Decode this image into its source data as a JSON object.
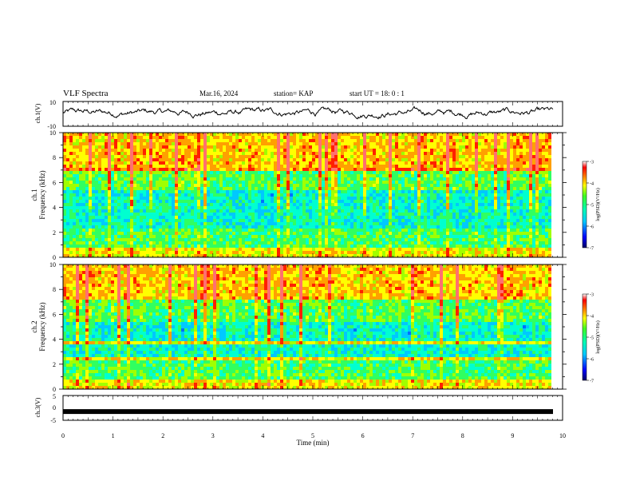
{
  "header": {
    "title": "VLF Spectra",
    "date": "Mar.16, 2024",
    "station": "station= KAP",
    "start": "start UT =  18: 0  : 1"
  },
  "colors": {
    "spectrum": [
      "#000066",
      "#0000ff",
      "#0070ff",
      "#00c8ff",
      "#00ffd0",
      "#30ff60",
      "#a0ff00",
      "#ffff00",
      "#ffa000",
      "#ff2000",
      "#ff7070",
      "#ffffff"
    ]
  },
  "chart_data": [
    {
      "type": "line",
      "panel": "ch1-waveform",
      "ylabel": "ch.1(V)",
      "ylim": [
        -10,
        10
      ],
      "ytick_labels": [
        "10",
        "-10"
      ],
      "x_range": [
        0,
        9.83
      ],
      "approx_level": 1,
      "amplitude": 4
    },
    {
      "type": "heatmap",
      "panel": "ch1-spectrogram",
      "ylabel_line1": "ch.1",
      "ylabel_line2": "Frequency (kHz)",
      "ylim": [
        0,
        10
      ],
      "ytick_labels": [
        "0",
        "2",
        "4",
        "6",
        "8",
        "10"
      ],
      "colorbar": {
        "label": "log(PSD)(V²/Hz)",
        "range": [
          -7,
          -3
        ],
        "tick_labels": [
          "-3",
          "-4",
          "-5",
          "-6",
          "-7"
        ]
      }
    },
    {
      "type": "heatmap",
      "panel": "ch2-spectrogram",
      "ylabel_line1": "ch.2",
      "ylabel_line2": "Frequency (kHz)",
      "ylim": [
        0,
        10
      ],
      "ytick_labels": [
        "0",
        "2",
        "4",
        "6",
        "8",
        "10"
      ],
      "colorbar": {
        "label": "log(PSD)(V²/Hz)",
        "range": [
          -7,
          -3
        ],
        "tick_labels": [
          "-3",
          "-4",
          "-5",
          "-6",
          "-7"
        ]
      }
    },
    {
      "type": "line",
      "panel": "ch3-waveform",
      "ylabel": "ch.3(V)",
      "ylim": [
        -5,
        5
      ],
      "ytick_labels": [
        "5",
        "0",
        "-5"
      ],
      "approx_level": -1.5,
      "xlabel": "Time (min)",
      "xlim": [
        0,
        10
      ],
      "xtick_labels": [
        "0",
        "1",
        "2",
        "3",
        "4",
        "5",
        "6",
        "7",
        "8",
        "9",
        "10"
      ]
    }
  ]
}
